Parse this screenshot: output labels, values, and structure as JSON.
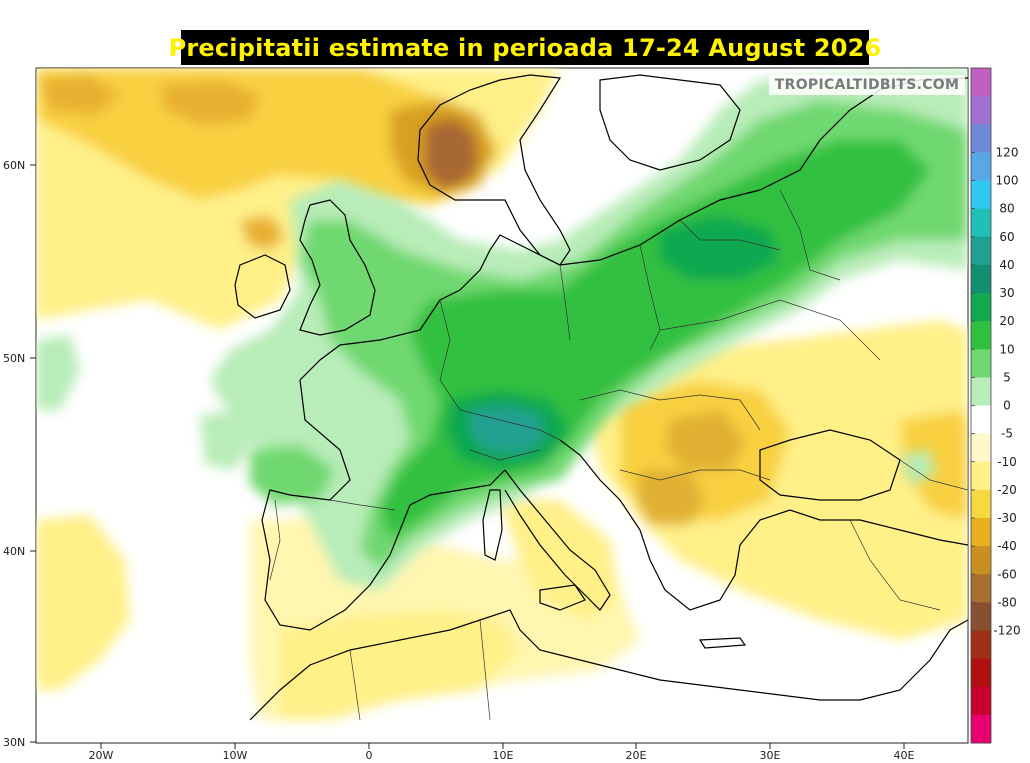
{
  "title": "Precipitatii estimate in perioada 17-24 August 2026",
  "watermark": "TROPICALTIDBITS.COM",
  "axes": {
    "lat_labels": [
      "60N",
      "50N",
      "40N",
      "30N"
    ],
    "lon_labels": [
      "20W",
      "10W",
      "0",
      "10E",
      "20E",
      "30E",
      "40E"
    ]
  },
  "colorbar": {
    "labels": [
      "120",
      "100",
      "80",
      "60",
      "40",
      "30",
      "20",
      "10",
      "5",
      "0",
      "-5",
      "-10",
      "-20",
      "-30",
      "-40",
      "-60",
      "-80",
      "-120"
    ],
    "colors": [
      "#c060c0",
      "#a070d0",
      "#7088d8",
      "#58a8e8",
      "#30c8f0",
      "#20c0b8",
      "#20a090",
      "#109070",
      "#10a850",
      "#30c040",
      "#70d870",
      "#b8ecb8",
      "#ffffff",
      "#fff8c8",
      "#fff088",
      "#f8d840",
      "#e8b020",
      "#c89020",
      "#a87030",
      "#885030",
      "#a03018",
      "#b01010",
      "#c80030",
      "#e80070"
    ]
  },
  "legend_colors": {
    "wet_strong": "#20a060",
    "wet_mid": "#30c040",
    "wet_light": "#80e080",
    "dry_light": "#fff4a8",
    "dry_mid": "#f8d030",
    "dry_strong": "#d8a020",
    "dry_extreme": "#a86830"
  }
}
